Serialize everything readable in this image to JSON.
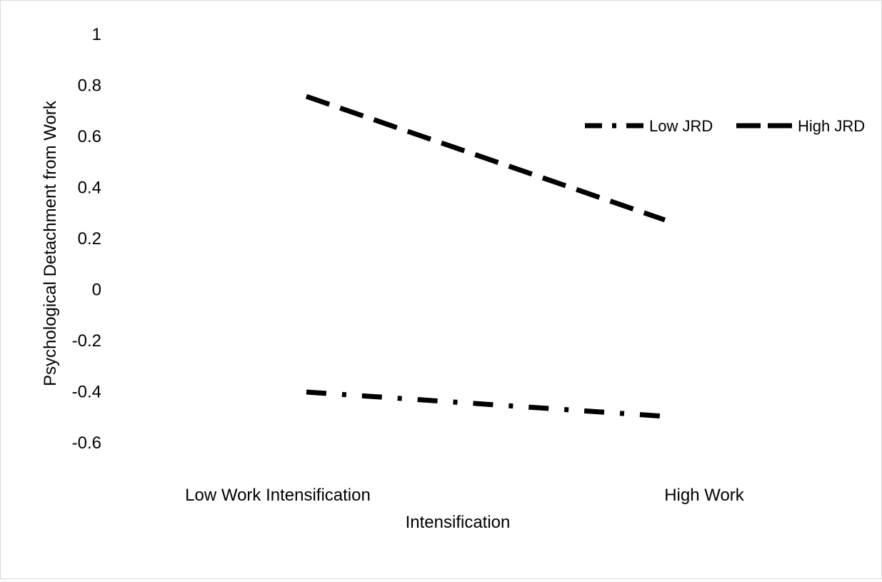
{
  "chart_data": {
    "type": "line",
    "title": "",
    "xlabel": "",
    "ylabel": "Psychological Detachment from Work",
    "categories": [
      "Low Work Intensification",
      "High Work Intensification"
    ],
    "x_tick_labels": [
      {
        "lines": [
          "Low Work Intensification"
        ]
      },
      {
        "lines": [
          "High Work",
          "Intensification"
        ]
      }
    ],
    "series": [
      {
        "name": "Low JRD",
        "style": "dash-dot",
        "color": "#000000",
        "values": [
          -0.4,
          -0.5
        ]
      },
      {
        "name": "High JRD",
        "style": "dash",
        "color": "#000000",
        "values": [
          0.74,
          0.27
        ]
      }
    ],
    "ylim": [
      -0.6,
      1.0
    ],
    "y_ticks": [
      {
        "value": 1.0,
        "label": "1"
      },
      {
        "value": 0.8,
        "label": "0.8"
      },
      {
        "value": 0.6,
        "label": "0.6"
      },
      {
        "value": 0.4,
        "label": "0.4"
      },
      {
        "value": 0.2,
        "label": "0.2"
      },
      {
        "value": 0.0,
        "label": "0"
      },
      {
        "value": -0.2,
        "label": "-0.2"
      },
      {
        "value": -0.4,
        "label": "-0.4"
      },
      {
        "value": -0.6,
        "label": "-0.6"
      }
    ],
    "grid": false,
    "legend": {
      "placement": "top-right"
    }
  }
}
